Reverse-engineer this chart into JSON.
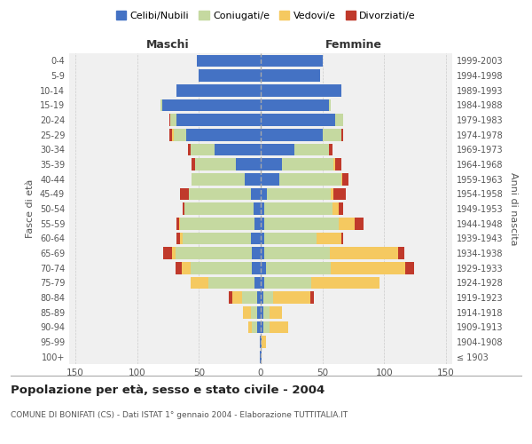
{
  "age_groups": [
    "100+",
    "95-99",
    "90-94",
    "85-89",
    "80-84",
    "75-79",
    "70-74",
    "65-69",
    "60-64",
    "55-59",
    "50-54",
    "45-49",
    "40-44",
    "35-39",
    "30-34",
    "25-29",
    "20-24",
    "15-19",
    "10-14",
    "5-9",
    "0-4"
  ],
  "birth_years": [
    "≤ 1903",
    "1904-1908",
    "1909-1913",
    "1914-1918",
    "1919-1923",
    "1924-1928",
    "1929-1933",
    "1934-1938",
    "1939-1943",
    "1944-1948",
    "1949-1953",
    "1954-1958",
    "1959-1963",
    "1964-1968",
    "1969-1973",
    "1974-1978",
    "1979-1983",
    "1984-1988",
    "1989-1993",
    "1994-1998",
    "1999-2003"
  ],
  "maschi": {
    "celibi": [
      1,
      1,
      3,
      3,
      3,
      5,
      7,
      7,
      8,
      5,
      6,
      8,
      13,
      20,
      37,
      60,
      68,
      80,
      68,
      50,
      52
    ],
    "coniugati": [
      0,
      0,
      4,
      5,
      12,
      37,
      50,
      62,
      55,
      60,
      56,
      50,
      43,
      33,
      20,
      10,
      5,
      1,
      0,
      0,
      0
    ],
    "vedovi": [
      0,
      0,
      3,
      6,
      8,
      15,
      7,
      3,
      2,
      1,
      0,
      0,
      0,
      0,
      0,
      2,
      0,
      0,
      0,
      0,
      0
    ],
    "divorziati": [
      0,
      0,
      0,
      0,
      3,
      0,
      5,
      7,
      3,
      2,
      1,
      7,
      0,
      3,
      2,
      2,
      1,
      0,
      0,
      0,
      0
    ]
  },
  "femmine": {
    "nubili": [
      1,
      1,
      2,
      2,
      2,
      3,
      4,
      3,
      3,
      3,
      3,
      5,
      15,
      17,
      27,
      50,
      60,
      55,
      65,
      48,
      50
    ],
    "coniugate": [
      0,
      0,
      5,
      5,
      8,
      38,
      53,
      53,
      42,
      60,
      55,
      52,
      50,
      42,
      28,
      15,
      7,
      2,
      0,
      0,
      0
    ],
    "vedove": [
      0,
      3,
      15,
      10,
      30,
      55,
      60,
      55,
      20,
      13,
      5,
      2,
      1,
      1,
      0,
      0,
      0,
      0,
      0,
      0,
      0
    ],
    "divorziate": [
      0,
      0,
      0,
      0,
      3,
      0,
      7,
      5,
      2,
      7,
      4,
      10,
      5,
      5,
      3,
      2,
      0,
      0,
      0,
      0,
      0
    ]
  },
  "colors": {
    "celibi": "#4472c4",
    "coniugati": "#c5d9a0",
    "vedovi": "#f5c960",
    "divorziati": "#c0392b"
  },
  "title": "Popolazione per età, sesso e stato civile - 2004",
  "subtitle": "COMUNE DI BONIFATI (CS) - Dati ISTAT 1° gennaio 2004 - Elaborazione TUTTITALIA.IT",
  "xlabel_left": "Maschi",
  "xlabel_right": "Femmine",
  "ylabel_left": "Fasce di età",
  "ylabel_right": "Anni di nascita",
  "xlim": 155,
  "legend_labels": [
    "Celibi/Nubili",
    "Coniugati/e",
    "Vedovi/e",
    "Divorziati/e"
  ],
  "background_color": "#ffffff"
}
